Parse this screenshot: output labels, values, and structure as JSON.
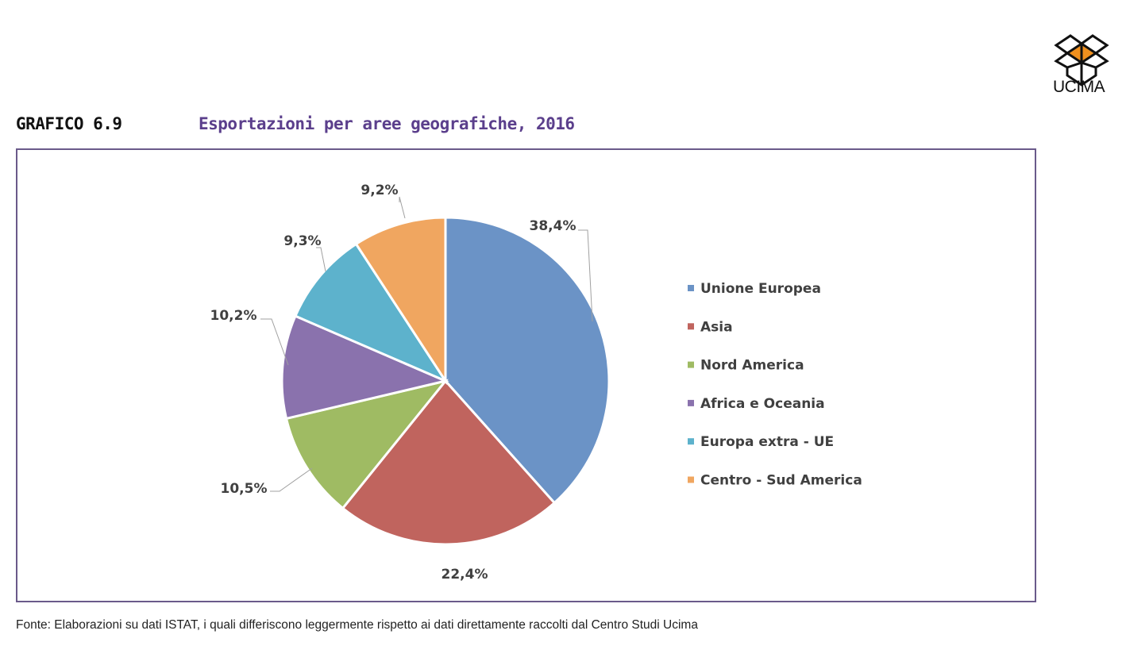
{
  "header": {
    "graph_number": "GRAFICO 6.9",
    "graph_title": "Esportazioni per aree geografiche, 2016",
    "logo_text": "UCIMA"
  },
  "chart_data": {
    "type": "pie",
    "title": "Esportazioni per aree geografiche, 2016",
    "legend_position": "right",
    "slices": [
      {
        "label": "Unione Europea",
        "value": 38.4,
        "display": "38,4%",
        "color": "#6b93c6"
      },
      {
        "label": "Asia",
        "value": 22.4,
        "display": "22,4%",
        "color": "#c0645e"
      },
      {
        "label": "Nord America",
        "value": 10.5,
        "display": "10,5%",
        "color": "#9fbb63"
      },
      {
        "label": "Africa e Oceania",
        "value": 10.2,
        "display": "10,2%",
        "color": "#8a72ad"
      },
      {
        "label": "Europa extra - UE",
        "value": 9.3,
        "display": "9,3%",
        "color": "#5db2cc"
      },
      {
        "label": "Centro - Sud America",
        "value": 9.2,
        "display": "9,2%",
        "color": "#f0a660"
      }
    ]
  },
  "footer": {
    "source": "Fonte:  Elaborazioni su dati ISTAT, i quali differiscono leggermente rispetto ai dati direttamente raccolti dal Centro Studi Ucima"
  }
}
